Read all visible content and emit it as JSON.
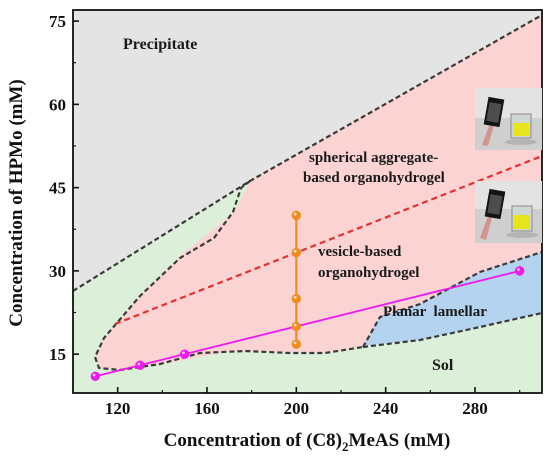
{
  "chart_data": {
    "type": "scatter",
    "title": "",
    "xlabel_pre": "Concentration of (C8)",
    "xlabel_sub": "2",
    "xlabel_post": "MeAS (mM)",
    "ylabel": "Concentration of HPMo (mM)",
    "xlim": [
      100,
      310
    ],
    "ylim": [
      8,
      77
    ],
    "xticks": [
      120,
      160,
      200,
      240,
      280
    ],
    "yticks": [
      15,
      30,
      45,
      60,
      75
    ],
    "grid": false,
    "colors": {
      "precipitate": "#e4e4e4",
      "spherical": "#fbd3d3",
      "sol": "#dcefd9",
      "lamellar": "#b3d3ee",
      "boundary": "#3a3a3a",
      "red_dashed": "#e53030",
      "orange": "#f08c1e",
      "magenta": "#ee19ee"
    },
    "regions": [
      {
        "name": "Precipitate",
        "label": "Precipitate"
      },
      {
        "name": "spherical aggregate-based organohydrogel",
        "label_lines": [
          "spherical aggregate-",
          "based organohydrogel"
        ]
      },
      {
        "name": "vesicle-based organohydrogel",
        "label_lines": [
          "vesicle-based",
          "organohydrogel"
        ]
      },
      {
        "name": "Planar lamellar",
        "label": "Planar  lamellar"
      },
      {
        "name": "Sol",
        "label": "Sol"
      }
    ],
    "boundaries": {
      "precipitate_spherical": [
        [
          100,
          25.5
        ],
        [
          180,
          45
        ],
        [
          310,
          77
        ]
      ],
      "left_sol": [
        [
          100,
          25.5
        ],
        [
          160,
          33
        ],
        [
          174,
          42
        ],
        [
          178,
          44.5
        ],
        [
          180,
          45
        ]
      ],
      "sol_left_inner": [
        [
          160,
          33
        ],
        [
          130,
          22
        ],
        [
          112,
          15
        ],
        [
          110,
          12.5
        ],
        [
          115,
          11.2
        ],
        [
          140,
          12
        ],
        [
          170,
          14.2
        ],
        [
          200,
          14.5
        ],
        [
          230,
          15.3
        ],
        [
          242,
          16.3
        ]
      ],
      "red_dashed_line": [
        [
          119,
          19.5
        ],
        [
          310,
          50
        ]
      ],
      "lamellar_outer": [
        [
          232,
          15.5
        ],
        [
          240,
          21
        ],
        [
          268,
          23
        ],
        [
          300,
          30
        ],
        [
          310,
          33
        ]
      ],
      "lamellar_inner": [
        [
          232,
          15.5
        ],
        [
          260,
          16.3
        ],
        [
          285,
          18.5
        ],
        [
          310,
          21
        ]
      ]
    },
    "series": [
      {
        "type": "line-markers",
        "color": "#ee19ee",
        "points": [
          [
            110,
            11
          ],
          [
            130,
            13
          ],
          [
            150,
            15
          ],
          [
            300,
            30
          ]
        ]
      },
      {
        "type": "vertical-markers",
        "color": "#f08c1e",
        "points": [
          [
            200,
            16.8
          ],
          [
            200,
            20
          ],
          [
            200,
            25
          ],
          [
            200,
            33.3
          ],
          [
            200,
            40
          ]
        ]
      }
    ]
  }
}
